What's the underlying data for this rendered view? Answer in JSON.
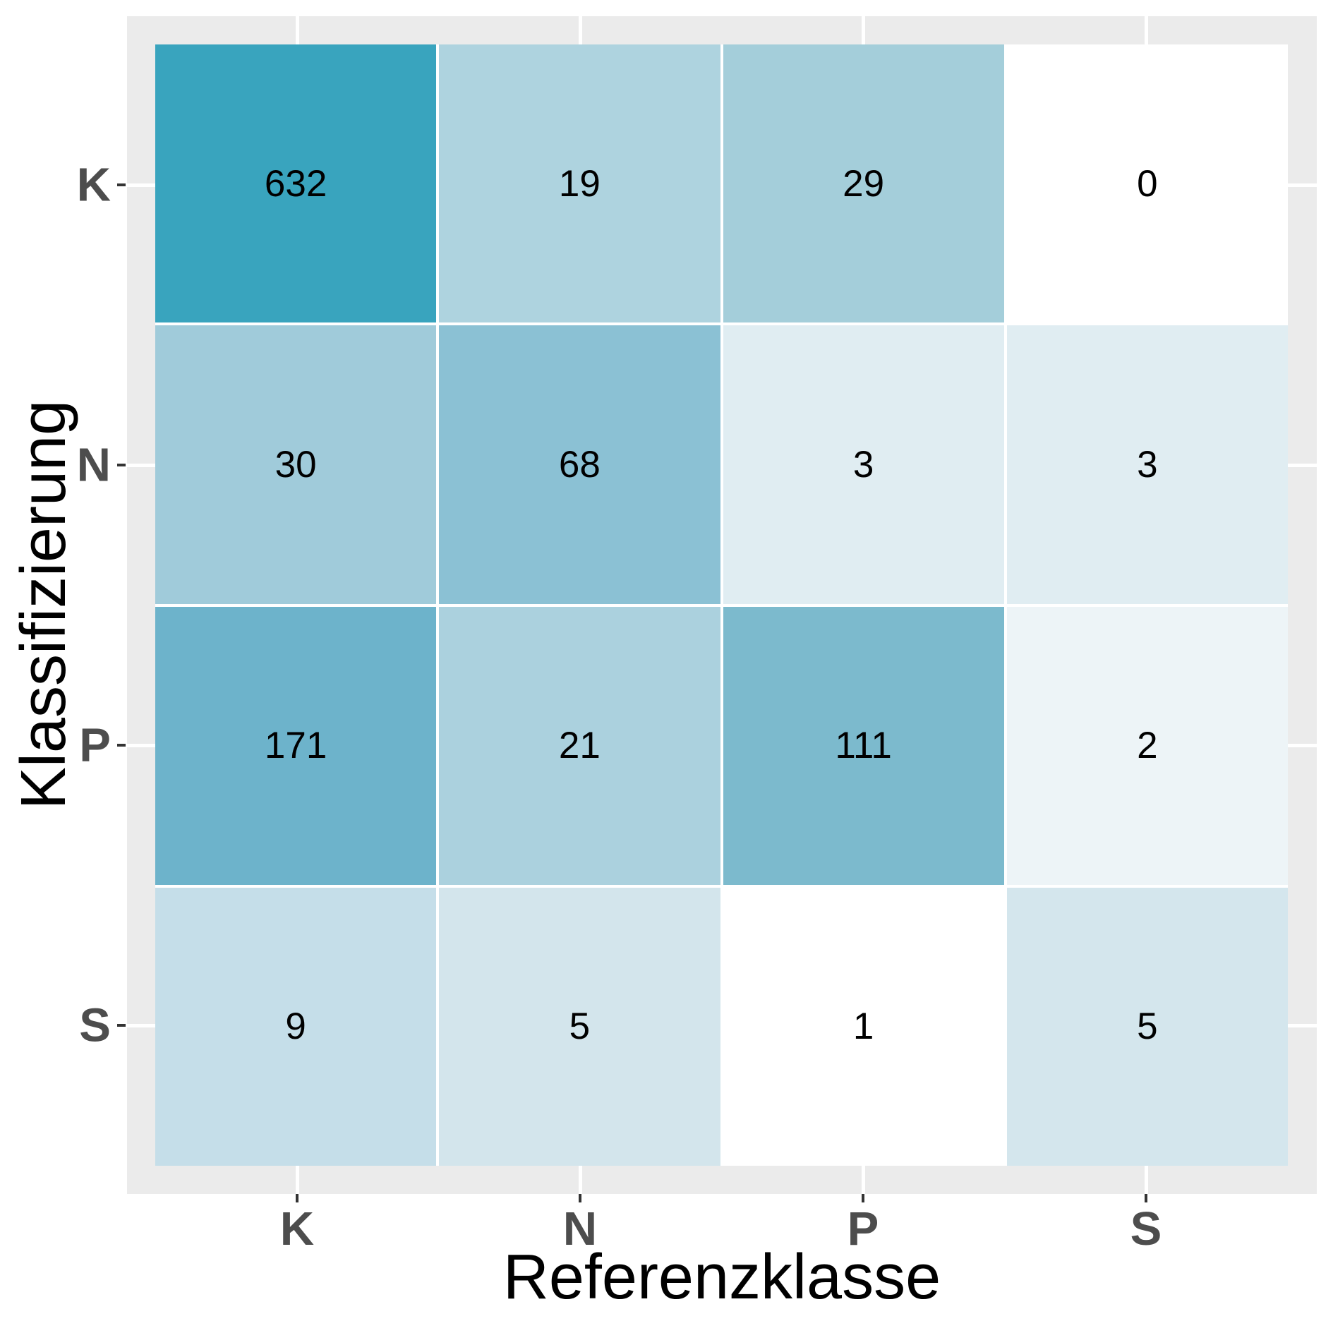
{
  "figure": {
    "background": "#FFFFFF",
    "panel_background": "#EBEBEB",
    "gridline_color": "#FFFFFF",
    "tile_border_color": "#FFFFFF",
    "tick_color": "#333333",
    "axis_text_color": "#4D4D4D",
    "axis_title_color": "#000000",
    "cell_text_color": "#000000",
    "high_fill": "#39A4BE",
    "low_fill": "#FFFFFF"
  },
  "chart_data": {
    "type": "heatmap",
    "title": "",
    "xlabel": "Referenzklasse",
    "ylabel": "Klassifizierung",
    "x_categories": [
      "K",
      "N",
      "P",
      "S"
    ],
    "y_categories": [
      "K",
      "N",
      "P",
      "S"
    ],
    "legend_position": "none",
    "grid": true,
    "rows": [
      {
        "y": "K",
        "cells": [
          {
            "x": "K",
            "value": 632,
            "fill": "#39A4BE"
          },
          {
            "x": "N",
            "value": 19,
            "fill": "#AED3DF"
          },
          {
            "x": "P",
            "value": 29,
            "fill": "#A4CEDA"
          },
          {
            "x": "S",
            "value": 0,
            "fill": "#FFFFFF"
          }
        ]
      },
      {
        "y": "N",
        "cells": [
          {
            "x": "K",
            "value": 30,
            "fill": "#A0CBDA"
          },
          {
            "x": "N",
            "value": 68,
            "fill": "#8BC1D4"
          },
          {
            "x": "P",
            "value": 3,
            "fill": "#E0EDF2"
          },
          {
            "x": "S",
            "value": 3,
            "fill": "#E0EDF2"
          }
        ]
      },
      {
        "y": "P",
        "cells": [
          {
            "x": "K",
            "value": 171,
            "fill": "#6DB3CB"
          },
          {
            "x": "N",
            "value": 21,
            "fill": "#ABD1DE"
          },
          {
            "x": "P",
            "value": 111,
            "fill": "#7CBACD"
          },
          {
            "x": "S",
            "value": 2,
            "fill": "#EDF4F7"
          }
        ]
      },
      {
        "y": "S",
        "cells": [
          {
            "x": "K",
            "value": 9,
            "fill": "#C5DEE9"
          },
          {
            "x": "N",
            "value": 5,
            "fill": "#D3E5EC"
          },
          {
            "x": "P",
            "value": 1,
            "fill": "#FFFFFF"
          },
          {
            "x": "S",
            "value": 5,
            "fill": "#D4E6ED"
          }
        ]
      }
    ]
  }
}
